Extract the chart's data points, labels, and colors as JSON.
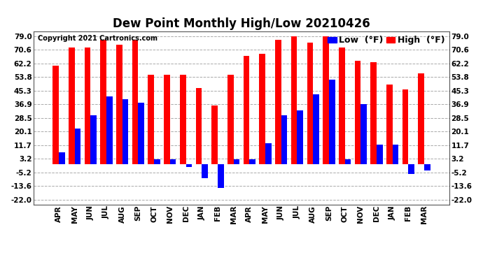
{
  "title": "Dew Point Monthly High/Low 20210426",
  "copyright": "Copyright 2021 Cartronics.com",
  "months": [
    "APR",
    "MAY",
    "JUN",
    "JUL",
    "AUG",
    "SEP",
    "OCT",
    "NOV",
    "DEC",
    "JAN",
    "FEB",
    "MAR",
    "APR",
    "MAY",
    "JUN",
    "JUL",
    "AUG",
    "SEP",
    "OCT",
    "NOV",
    "DEC",
    "JAN",
    "FEB",
    "MAR"
  ],
  "high_values": [
    61,
    72,
    72,
    77,
    74,
    77,
    55,
    55,
    55,
    47,
    36,
    55,
    67,
    68,
    77,
    79,
    75,
    79,
    72,
    64,
    63,
    49,
    46,
    56
  ],
  "low_values": [
    7,
    22,
    30,
    42,
    40,
    38,
    3,
    3,
    -2,
    -9,
    -15,
    3,
    3,
    13,
    30,
    33,
    43,
    52,
    3,
    37,
    12,
    12,
    -6,
    -4
  ],
  "high_color": "#ff0000",
  "low_color": "#0000ff",
  "bg_color": "#ffffff",
  "grid_color": "#aaaaaa",
  "yticks": [
    -22.0,
    -13.6,
    -5.2,
    3.2,
    11.7,
    20.1,
    28.5,
    36.9,
    45.3,
    53.8,
    62.2,
    70.6,
    79.0
  ],
  "ylim_lo": -25,
  "ylim_hi": 82,
  "bar_width": 0.38,
  "title_fontsize": 12,
  "tick_fontsize": 7.5,
  "legend_fontsize": 9,
  "copyright_fontsize": 7
}
